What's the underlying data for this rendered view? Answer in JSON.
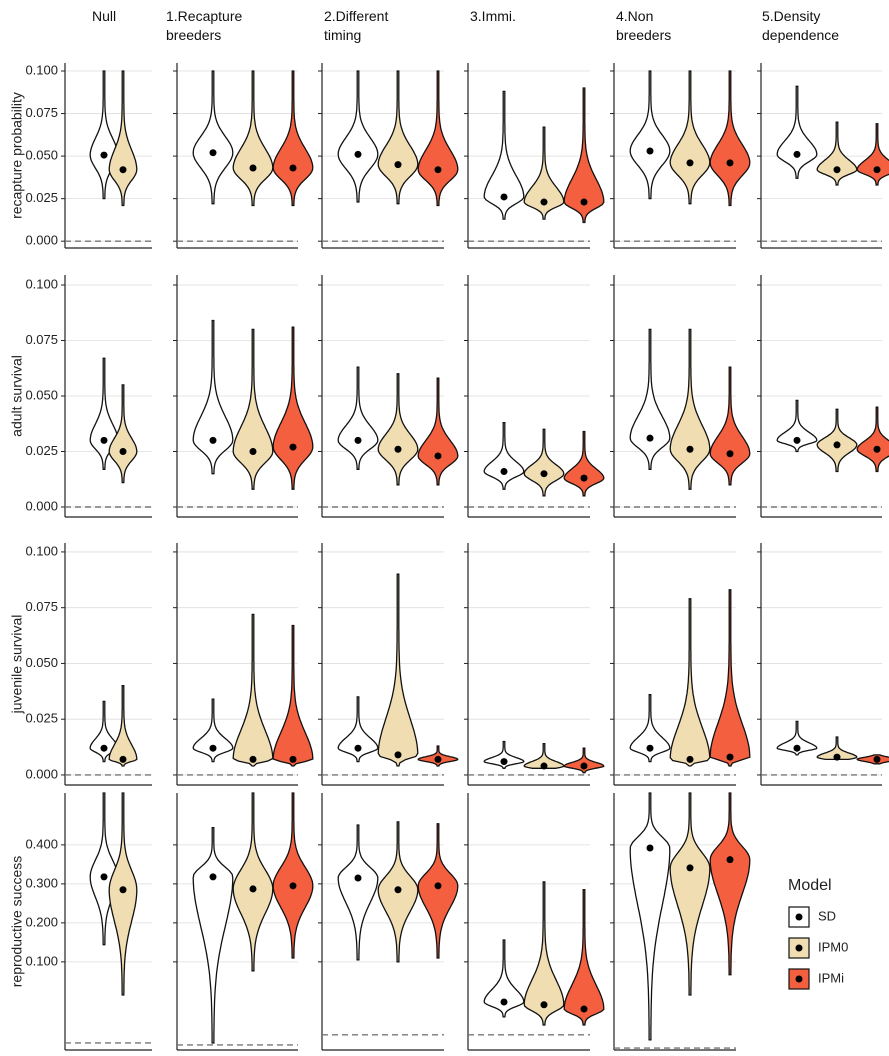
{
  "chart_data": {
    "type": "violin",
    "columns": [
      "Null",
      "1.Recapture\nbreeders",
      "2.Different\ntiming",
      "3.Immi.",
      "4.Non\nbreeders",
      "5.Density\ndependence"
    ],
    "legend_title": "Model",
    "series": [
      {
        "name": "SD",
        "color": "#ffffff"
      },
      {
        "name": "IPM0",
        "color": "#f0ddb2"
      },
      {
        "name": "IPMi",
        "color": "#f4603f"
      }
    ],
    "rows": [
      {
        "ylabel": "recapture probability",
        "ylim": [
          -0.004,
          0.1047
        ],
        "yticks": [
          {
            "value": 0,
            "label": "0.000"
          },
          {
            "value": 0.025,
            "label": "0.025"
          },
          {
            "value": 0.05,
            "label": "0.050"
          },
          {
            "value": 0.075,
            "label": "0.075"
          },
          {
            "value": 0.1,
            "label": "0.100"
          }
        ],
        "panels": [
          {
            "reference": 0,
            "violins": [
              {
                "min": 0.025,
                "median": 0.0506,
                "max": 0.1
              },
              {
                "min": 0.021,
                "median": 0.042,
                "max": 0.1
              }
            ]
          },
          {
            "reference": 0,
            "violins": [
              {
                "min": 0.022,
                "median": 0.052,
                "max": 0.1
              },
              {
                "min": 0.021,
                "median": 0.043,
                "max": 0.1
              },
              {
                "min": 0.021,
                "median": 0.043,
                "max": 0.1
              }
            ]
          },
          {
            "reference": 0,
            "violins": [
              {
                "min": 0.023,
                "median": 0.051,
                "max": 0.1
              },
              {
                "min": 0.022,
                "median": 0.045,
                "max": 0.1
              },
              {
                "min": 0.021,
                "median": 0.042,
                "max": 0.1
              }
            ]
          },
          {
            "reference": 0,
            "violins": [
              {
                "min": 0.013,
                "median": 0.026,
                "max": 0.088
              },
              {
                "min": 0.013,
                "median": 0.023,
                "max": 0.067
              },
              {
                "min": 0.011,
                "median": 0.023,
                "max": 0.09
              }
            ]
          },
          {
            "reference": 0,
            "violins": [
              {
                "min": 0.025,
                "median": 0.053,
                "max": 0.1
              },
              {
                "min": 0.022,
                "median": 0.046,
                "max": 0.1
              },
              {
                "min": 0.021,
                "median": 0.046,
                "max": 0.1
              }
            ]
          },
          {
            "reference": 0,
            "violins": [
              {
                "min": 0.037,
                "median": 0.051,
                "max": 0.091
              },
              {
                "min": 0.033,
                "median": 0.042,
                "max": 0.07
              },
              {
                "min": 0.033,
                "median": 0.042,
                "max": 0.069
              }
            ]
          }
        ]
      },
      {
        "ylabel": "adult survival",
        "ylim": [
          -0.0045,
          0.1045
        ],
        "yticks": [
          {
            "value": 0,
            "label": "0.000"
          },
          {
            "value": 0.025,
            "label": "0.025"
          },
          {
            "value": 0.05,
            "label": "0.050"
          },
          {
            "value": 0.075,
            "label": "0.075"
          },
          {
            "value": 0.1,
            "label": "0.100"
          }
        ],
        "panels": [
          {
            "reference": 0,
            "violins": [
              {
                "min": 0.017,
                "median": 0.03,
                "max": 0.067
              },
              {
                "min": 0.011,
                "median": 0.025,
                "max": 0.055
              }
            ]
          },
          {
            "reference": 0,
            "violins": [
              {
                "min": 0.015,
                "median": 0.03,
                "max": 0.084
              },
              {
                "min": 0.008,
                "median": 0.025,
                "max": 0.08
              },
              {
                "min": 0.008,
                "median": 0.027,
                "max": 0.081
              }
            ]
          },
          {
            "reference": 0,
            "violins": [
              {
                "min": 0.017,
                "median": 0.03,
                "max": 0.063
              },
              {
                "min": 0.01,
                "median": 0.026,
                "max": 0.06
              },
              {
                "min": 0.01,
                "median": 0.023,
                "max": 0.058
              }
            ]
          },
          {
            "reference": 0,
            "violins": [
              {
                "min": 0.008,
                "median": 0.016,
                "max": 0.038
              },
              {
                "min": 0.005,
                "median": 0.015,
                "max": 0.035
              },
              {
                "min": 0.005,
                "median": 0.013,
                "max": 0.034
              }
            ]
          },
          {
            "reference": 0,
            "violins": [
              {
                "min": 0.017,
                "median": 0.031,
                "max": 0.08
              },
              {
                "min": 0.008,
                "median": 0.026,
                "max": 0.08
              },
              {
                "min": 0.01,
                "median": 0.024,
                "max": 0.063
              }
            ]
          },
          {
            "reference": 0,
            "violins": [
              {
                "min": 0.025,
                "median": 0.03,
                "max": 0.048
              },
              {
                "min": 0.016,
                "median": 0.028,
                "max": 0.044
              },
              {
                "min": 0.016,
                "median": 0.026,
                "max": 0.045
              }
            ]
          }
        ]
      },
      {
        "ylabel": "juvenile survival",
        "ylim": [
          -0.0045,
          0.104
        ],
        "yticks": [
          {
            "value": 0,
            "label": "0.000"
          },
          {
            "value": 0.025,
            "label": "0.025"
          },
          {
            "value": 0.05,
            "label": "0.050"
          },
          {
            "value": 0.075,
            "label": "0.075"
          },
          {
            "value": 0.1,
            "label": "0.100"
          }
        ],
        "panels": [
          {
            "reference": 0,
            "violins": [
              {
                "min": 0.006,
                "median": 0.012,
                "max": 0.033
              },
              {
                "min": 0.004,
                "median": 0.007,
                "max": 0.04
              }
            ]
          },
          {
            "reference": 0,
            "violins": [
              {
                "min": 0.006,
                "median": 0.012,
                "max": 0.034
              },
              {
                "min": 0.004,
                "median": 0.007,
                "max": 0.072
              },
              {
                "min": 0.004,
                "median": 0.007,
                "max": 0.067
              }
            ]
          },
          {
            "reference": 0,
            "violins": [
              {
                "min": 0.006,
                "median": 0.012,
                "max": 0.035
              },
              {
                "min": 0.004,
                "median": 0.009,
                "max": 0.09
              },
              {
                "min": 0.004,
                "median": 0.007,
                "max": 0.013
              }
            ]
          },
          {
            "reference": 0,
            "violins": [
              {
                "min": 0.003,
                "median": 0.006,
                "max": 0.015
              },
              {
                "min": 0.003,
                "median": 0.004,
                "max": 0.014
              },
              {
                "min": 0.001,
                "median": 0.004,
                "max": 0.012
              }
            ]
          },
          {
            "reference": 0,
            "violins": [
              {
                "min": 0.006,
                "median": 0.012,
                "max": 0.036
              },
              {
                "min": 0.004,
                "median": 0.007,
                "max": 0.079
              },
              {
                "min": 0.004,
                "median": 0.008,
                "max": 0.083
              }
            ]
          },
          {
            "reference": 0,
            "violins": [
              {
                "min": 0.009,
                "median": 0.012,
                "max": 0.024
              },
              {
                "min": 0.007,
                "median": 0.008,
                "max": 0.017
              },
              {
                "min": 0.005,
                "median": 0.007,
                "max": 0.009
              }
            ]
          }
        ]
      },
      {
        "ylabel": "reproductive success",
        "ylim": [
          -0.126,
          0.533
        ],
        "yticks": [
          {
            "value": 0.1,
            "label": "0.100"
          },
          {
            "value": 0.2,
            "label": "0.200"
          },
          {
            "value": 0.3,
            "label": "0.300"
          },
          {
            "value": 0.4,
            "label": "0.400"
          }
        ],
        "panels": [
          {
            "reference": -0.108,
            "violins": [
              {
                "min": 0.144,
                "median": 0.318,
                "max": 0.533
              },
              {
                "min": 0.015,
                "median": 0.285,
                "max": 0.533
              }
            ]
          },
          {
            "reference": -0.113,
            "violins": [
              {
                "min": -0.108,
                "median": 0.318,
                "max": 0.444
              },
              {
                "min": 0.077,
                "median": 0.287,
                "max": 0.533
              },
              {
                "min": 0.11,
                "median": 0.295,
                "max": 0.533
              }
            ]
          },
          {
            "reference": -0.087,
            "violins": [
              {
                "min": 0.105,
                "median": 0.315,
                "max": 0.451
              },
              {
                "min": 0.1,
                "median": 0.285,
                "max": 0.459
              },
              {
                "min": 0.11,
                "median": 0.295,
                "max": 0.454
              }
            ]
          },
          {
            "reference": -0.087,
            "violins": [
              {
                "min": -0.041,
                "median": -0.003,
                "max": 0.156
              },
              {
                "min": -0.062,
                "median": -0.01,
                "max": 0.305
              },
              {
                "min": -0.062,
                "median": -0.021,
                "max": 0.285
              }
            ]
          },
          {
            "reference": -0.121,
            "violins": [
              {
                "min": -0.1,
                "median": 0.392,
                "max": 0.533
              },
              {
                "min": 0.015,
                "median": 0.341,
                "max": 0.533
              },
              {
                "min": 0.067,
                "median": 0.362,
                "max": 0.533
              }
            ]
          }
        ]
      }
    ]
  }
}
